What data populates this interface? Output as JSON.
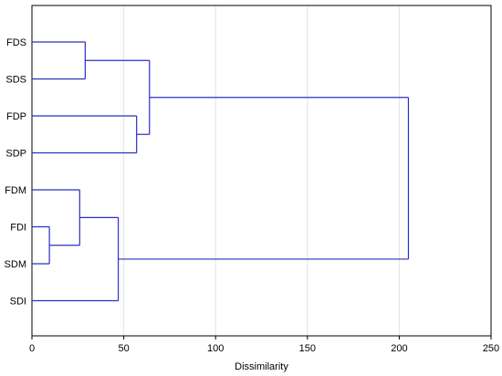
{
  "chart_data": {
    "type": "dendrogram",
    "title": "",
    "xlabel": "Dissimilarity",
    "ylabel": "",
    "xlim": [
      0,
      250
    ],
    "x_ticks": [
      "0",
      "50",
      "100",
      "150",
      "200",
      "250"
    ],
    "grid": "vertical",
    "leaves": [
      "FDS",
      "SDS",
      "FDP",
      "SDP",
      "FDM",
      "FDI",
      "SDM",
      "SDI"
    ],
    "merges": [
      {
        "a": "FDS",
        "b": "SDS",
        "height": 29
      },
      {
        "a": "FDP",
        "b": "SDP",
        "height": 57
      },
      {
        "a": "FDS-SDS",
        "b": "FDP-SDP",
        "height": 64
      },
      {
        "a": "FDI",
        "b": "SDM",
        "height": 9.5
      },
      {
        "a": "FDM",
        "b": "FDI-SDM",
        "height": 26
      },
      {
        "a": "FDM-FDI-SDM",
        "b": "SDI",
        "height": 47
      },
      {
        "a": "FDS-SDS-FDP-SDP",
        "b": "FDM-FDI-SDM-SDI",
        "height": 205
      }
    ],
    "line_color": "#2d2dc8"
  }
}
